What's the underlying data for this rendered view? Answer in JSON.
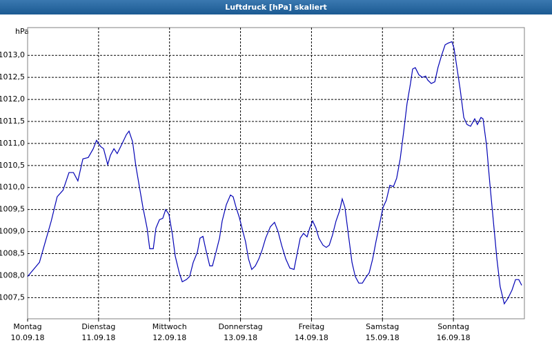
{
  "chart_data": {
    "type": "line",
    "title": "Luftdruck [hPa] skaliert",
    "ylabel": "hPa",
    "color": "#0000b4",
    "grid": true,
    "xlim": [
      0,
      168
    ],
    "ylim": [
      1007.02,
      1013.63
    ],
    "xticks": [
      {
        "value": 0,
        "label": "Montag"
      },
      {
        "value": 24,
        "label": "Dienstag"
      },
      {
        "value": 48,
        "label": "Mittwoch"
      },
      {
        "value": 72,
        "label": "Donnerstag"
      },
      {
        "value": 96,
        "label": "Freitag"
      },
      {
        "value": 120,
        "label": "Samstag"
      },
      {
        "value": 144,
        "label": "Sonntag"
      }
    ],
    "xtick_dates": [
      "10.09.18",
      "11.09.18",
      "12.09.18",
      "13.09.18",
      "14.09.18",
      "15.09.18",
      "16.09.18"
    ],
    "yticks": [
      {
        "value": 1007.5,
        "label": "1007,5"
      },
      {
        "value": 1008,
        "label": "1008,0"
      },
      {
        "value": 1008.5,
        "label": "1008,5"
      },
      {
        "value": 1009,
        "label": "1009,0"
      },
      {
        "value": 1009.5,
        "label": "1009,5"
      },
      {
        "value": 1010,
        "label": "1010,0"
      },
      {
        "value": 1010.5,
        "label": "1010,5"
      },
      {
        "value": 1011,
        "label": "1011,0"
      },
      {
        "value": 1011.5,
        "label": "1011,5"
      },
      {
        "value": 1012,
        "label": "1012,0"
      },
      {
        "value": 1012.5,
        "label": "1012,5"
      },
      {
        "value": 1013,
        "label": "1013,0"
      }
    ],
    "x": [
      0,
      2,
      4,
      6,
      8,
      10,
      12,
      14,
      15.5,
      17,
      18.7,
      20.5,
      22.2,
      23.3,
      24.7,
      25.7,
      27.1,
      28,
      29.2,
      30.3,
      31.7,
      33.4,
      34.3,
      35.5,
      36.6,
      37.8,
      39,
      40.4,
      41.3,
      42.5,
      43.4,
      44.6,
      45.7,
      46.7,
      47.8,
      49,
      49.9,
      51.3,
      52.3,
      53.7,
      54.8,
      56,
      57.4,
      58.3,
      59.3,
      60.2,
      61.6,
      62.5,
      63.7,
      64.9,
      65.8,
      67.2,
      68.6,
      69.5,
      70.5,
      71.6,
      72.8,
      73.7,
      74.7,
      75.8,
      77,
      78.2,
      79.3,
      80.5,
      82.1,
      83.5,
      84.7,
      85.9,
      87.3,
      88.7,
      90.1,
      91,
      92.2,
      93.3,
      94.5,
      95.4,
      96.4,
      97.5,
      98.5,
      99.9,
      101,
      102,
      103.1,
      104.3,
      105.5,
      106.4,
      107.3,
      108.5,
      109.7,
      110.8,
      112,
      113.2,
      114.3,
      115.5,
      116.7,
      117.8,
      119,
      120.2,
      121.3,
      122.5,
      123.7,
      124.8,
      126,
      127.2,
      128.3,
      129.5,
      130.2,
      131.1,
      132.3,
      133.5,
      134.6,
      135.3,
      136.5,
      137.7,
      138.8,
      140,
      141.2,
      142.3,
      143.5,
      144.2,
      145.1,
      146.3,
      147.5,
      148.6,
      149.8,
      151.2,
      152.1,
      153.3,
      154,
      155.2,
      156.3,
      157.5,
      158.7,
      159.8,
      161.2,
      162.4,
      163.8,
      165,
      166.1,
      167.1
    ],
    "values": [
      1007.98,
      1008.14,
      1008.3,
      1008.77,
      1009.24,
      1009.79,
      1009.94,
      1010.34,
      1010.34,
      1010.15,
      1010.65,
      1010.68,
      1010.88,
      1011.07,
      1010.93,
      1010.88,
      1010.52,
      1010.73,
      1010.88,
      1010.77,
      1010.96,
      1011.2,
      1011.28,
      1011.04,
      1010.49,
      1010.02,
      1009.55,
      1009.08,
      1008.61,
      1008.61,
      1009.08,
      1009.27,
      1009.3,
      1009.5,
      1009.39,
      1008.92,
      1008.45,
      1008.06,
      1007.86,
      1007.91,
      1007.98,
      1008.3,
      1008.53,
      1008.85,
      1008.89,
      1008.61,
      1008.22,
      1008.22,
      1008.53,
      1008.85,
      1009.24,
      1009.61,
      1009.83,
      1009.79,
      1009.55,
      1009.32,
      1009,
      1008.77,
      1008.38,
      1008.14,
      1008.22,
      1008.38,
      1008.58,
      1008.85,
      1009.11,
      1009.21,
      1009,
      1008.69,
      1008.38,
      1008.17,
      1008.14,
      1008.45,
      1008.85,
      1008.96,
      1008.88,
      1009.08,
      1009.24,
      1009.08,
      1008.85,
      1008.69,
      1008.64,
      1008.69,
      1008.92,
      1009.24,
      1009.47,
      1009.74,
      1009.55,
      1008.92,
      1008.3,
      1007.98,
      1007.83,
      1007.83,
      1007.95,
      1008.06,
      1008.38,
      1008.77,
      1009.16,
      1009.55,
      1009.71,
      1010.05,
      1010.02,
      1010.21,
      1010.65,
      1011.28,
      1011.9,
      1012.37,
      1012.69,
      1012.72,
      1012.56,
      1012.5,
      1012.53,
      1012.44,
      1012.36,
      1012.4,
      1012.73,
      1013,
      1013.24,
      1013.28,
      1013.31,
      1013.16,
      1012.76,
      1012.22,
      1011.59,
      1011.43,
      1011.39,
      1011.56,
      1011.43,
      1011.59,
      1011.56,
      1010.96,
      1010.1,
      1009.24,
      1008.38,
      1007.75,
      1007.36,
      1007.48,
      1007.67,
      1007.91,
      1007.91,
      1007.78
    ]
  }
}
